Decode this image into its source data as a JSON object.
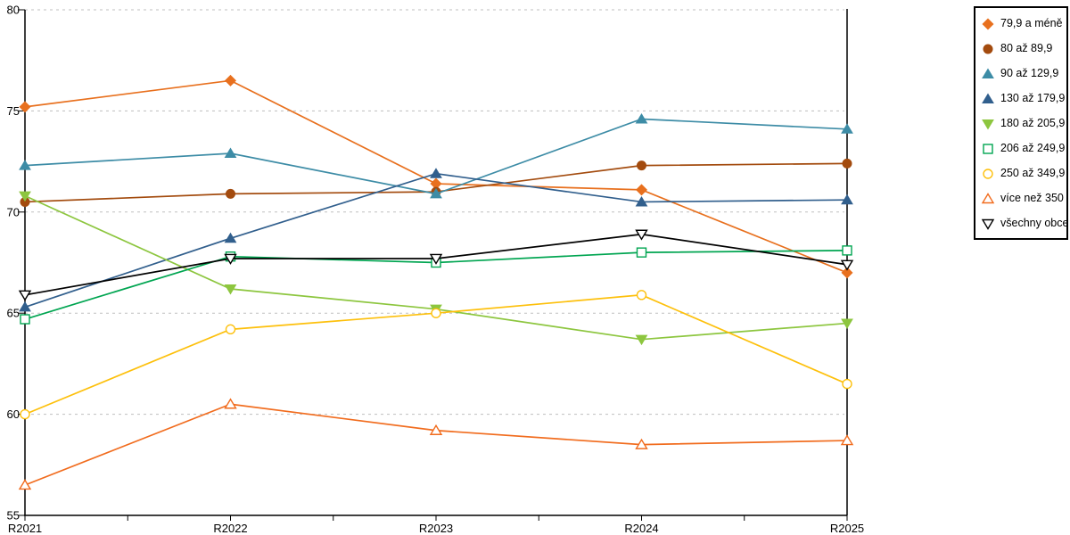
{
  "chart_data": {
    "type": "line",
    "title": "",
    "xlabel": "",
    "ylabel": "",
    "x": [
      "R2021",
      "R2022",
      "R2023",
      "R2024",
      "R2025"
    ],
    "ylim": [
      55,
      80
    ],
    "yticks": [
      55,
      60,
      65,
      70,
      75,
      80
    ],
    "grid": "horizontal-dashed",
    "gridline_color": "#bfbfbf",
    "axis_color": "#000000",
    "legend_position": "top-right",
    "series": [
      {
        "name": "79,9 a méně",
        "color": "#E8701E",
        "marker": "diamond",
        "fill": "solid",
        "values": [
          75.2,
          76.5,
          71.4,
          71.1,
          67.0
        ]
      },
      {
        "name": "80 až 89,9",
        "color": "#A34B0E",
        "marker": "circle",
        "fill": "solid",
        "values": [
          70.5,
          70.9,
          71.0,
          72.3,
          72.4
        ]
      },
      {
        "name": "90 až 129,9",
        "color": "#3D8CA6",
        "marker": "triangle-up",
        "fill": "solid",
        "values": [
          72.3,
          72.9,
          70.9,
          74.6,
          74.1
        ]
      },
      {
        "name": "130 až 179,9",
        "color": "#315F8D",
        "marker": "triangle-up",
        "fill": "solid",
        "values": [
          65.3,
          68.7,
          71.9,
          70.5,
          70.6
        ]
      },
      {
        "name": "180 až 205,9",
        "color": "#8DC63F",
        "marker": "triangle-down",
        "fill": "solid",
        "values": [
          70.8,
          66.2,
          65.2,
          63.7,
          64.5
        ]
      },
      {
        "name": "206 až 249,9",
        "color": "#00A551",
        "marker": "square",
        "fill": "open",
        "values": [
          64.7,
          67.8,
          67.5,
          68.0,
          68.1
        ]
      },
      {
        "name": "250 až 349,9",
        "color": "#FDC00C",
        "marker": "circle",
        "fill": "open",
        "values": [
          60.0,
          64.2,
          65.0,
          65.9,
          61.5
        ]
      },
      {
        "name": "více než 350",
        "color": "#F16C1E",
        "marker": "triangle-up",
        "fill": "open",
        "values": [
          56.5,
          60.5,
          59.2,
          58.5,
          58.7
        ]
      },
      {
        "name": "všechny obce",
        "color": "#000000",
        "marker": "triangle-down",
        "fill": "open",
        "values": [
          65.9,
          67.7,
          67.7,
          68.9,
          67.4
        ]
      }
    ]
  }
}
